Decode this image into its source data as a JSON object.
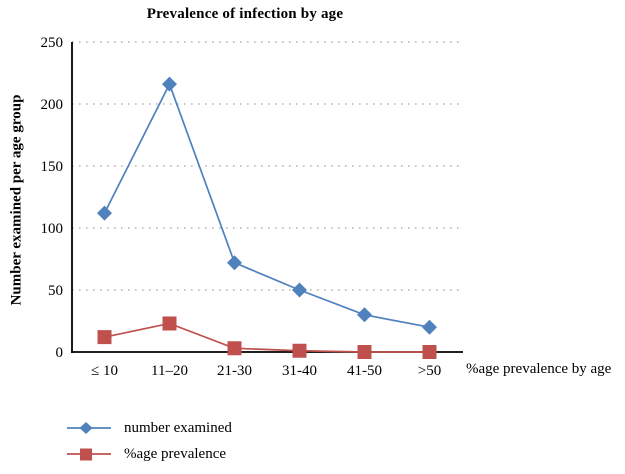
{
  "chart_data": {
    "type": "line",
    "title": "Prevalence of infection by age",
    "ylabel": "Number examined per age group",
    "xlabel": "",
    "x_axis_note": "%age prevalence by age",
    "categories": [
      "≤ 10",
      "11–20",
      "21-30",
      "31-40",
      "41-50",
      ">50"
    ],
    "series": [
      {
        "name": "number examined",
        "marker": "diamond",
        "color": "#4F81BD",
        "values": [
          112,
          216,
          72,
          50,
          30,
          20
        ]
      },
      {
        "name": "%age prevalence",
        "marker": "square",
        "color": "#C0504D",
        "values": [
          12,
          23,
          3,
          1,
          0,
          0
        ]
      }
    ],
    "ylim": [
      0,
      250
    ],
    "ytick_step": 50,
    "yticks": [
      0,
      50,
      100,
      150,
      200,
      250
    ],
    "grid": "dotted-horizontal",
    "grid_color": "#A6A6A6",
    "axis_color": "#000000",
    "legend_position": "bottom-left"
  }
}
